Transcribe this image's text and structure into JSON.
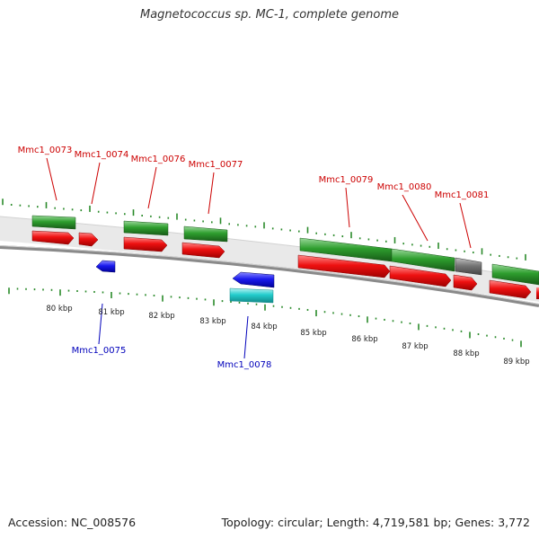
{
  "title": "Magnetococcus sp. MC-1, complete genome",
  "footer": {
    "accession": "Accession: NC_008576",
    "summary": "Topology: circular; Length: 4,719,581 bp; Genes: 3,772"
  },
  "colors": {
    "cds": "#ee1111",
    "gene": "#2e9e2e",
    "pseudo": "#777777",
    "rev_cds": "#1a1aee",
    "rev_gene": "#22cccc",
    "tick": "#2a8a2a",
    "label_fwd": "#cc0000",
    "label_rev": "#0000bb",
    "backbone": "#888888"
  },
  "axis": {
    "ticks": [
      {
        "label": "80 kbp"
      },
      {
        "label": "81 kbp"
      },
      {
        "label": "82 kbp"
      },
      {
        "label": "83 kbp"
      },
      {
        "label": "84 kbp"
      },
      {
        "label": "85 kbp"
      },
      {
        "label": "86 kbp"
      },
      {
        "label": "87 kbp"
      },
      {
        "label": "88 kbp"
      },
      {
        "label": "89 kbp"
      }
    ]
  },
  "genes": {
    "forward": [
      {
        "label": "Mmc1_0073"
      },
      {
        "label": "Mmc1_0074"
      },
      {
        "label": "Mmc1_0076"
      },
      {
        "label": "Mmc1_0077"
      },
      {
        "label": "Mmc1_0079"
      },
      {
        "label": "Mmc1_0080"
      },
      {
        "label": "Mmc1_0081"
      }
    ],
    "reverse": [
      {
        "label": "Mmc1_0075"
      },
      {
        "label": "Mmc1_0078"
      }
    ]
  }
}
